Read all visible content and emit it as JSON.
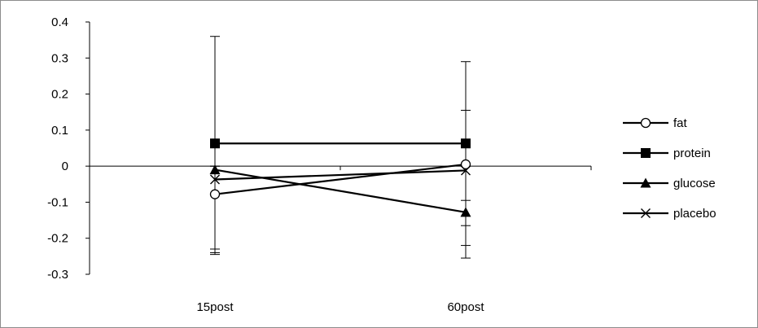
{
  "chart_data": {
    "type": "line",
    "title": "",
    "xlabel": "",
    "ylabel": "",
    "categories": [
      "15post",
      "60post"
    ],
    "ylim": [
      -0.3,
      0.4
    ],
    "yticks": [
      -0.3,
      -0.2,
      -0.1,
      0,
      0.1,
      0.2,
      0.3,
      0.4
    ],
    "ytick_labels": [
      "-0.3",
      "-0.2",
      "-0.1",
      "0",
      "0.1",
      "0.2",
      "0.3",
      "0.4"
    ],
    "grid": false,
    "legend_position": "right",
    "series": [
      {
        "name": "fat",
        "marker": "open-circle",
        "values": [
          -0.078,
          0.005
        ],
        "error_low": [
          -0.245,
          -0.095
        ],
        "error_high": [
          0.0,
          0.155
        ]
      },
      {
        "name": "protein",
        "marker": "filled-square",
        "values": [
          0.063,
          0.063
        ],
        "error_low": [
          -0.23,
          -0.165
        ],
        "error_high": [
          0.36,
          0.29
        ]
      },
      {
        "name": "glucose",
        "marker": "filled-triangle",
        "values": [
          -0.01,
          -0.128
        ],
        "error_low": [
          -0.24,
          -0.255
        ],
        "error_high": [
          0.0,
          0.0
        ]
      },
      {
        "name": "placebo",
        "marker": "cross",
        "values": [
          -0.037,
          -0.012
        ],
        "error_low": [
          -0.23,
          -0.22
        ],
        "error_high": [
          0.0,
          0.0
        ]
      }
    ]
  }
}
